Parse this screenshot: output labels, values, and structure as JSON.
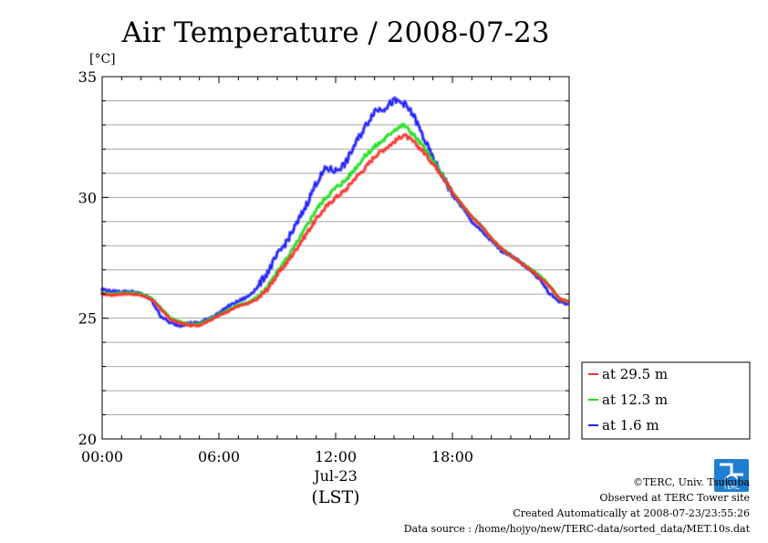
{
  "chart_data": {
    "type": "line",
    "title": "Air Temperature / 2008-07-23",
    "ylabel": "[°C]",
    "xlabel": "(LST)",
    "date_label": "Jul-23",
    "ylim": [
      20,
      35
    ],
    "xlim": [
      "00:00",
      "24:00"
    ],
    "y_ticks": [
      20,
      25,
      30,
      35
    ],
    "x_ticks": [
      "00:00",
      "06:00",
      "12:00",
      "18:00"
    ],
    "grid": true,
    "legend_position": "right-bottom",
    "x": [
      "00:00",
      "00:30",
      "01:00",
      "01:30",
      "02:00",
      "02:30",
      "03:00",
      "03:30",
      "04:00",
      "04:30",
      "05:00",
      "05:30",
      "06:00",
      "06:30",
      "07:00",
      "07:30",
      "08:00",
      "08:30",
      "09:00",
      "09:30",
      "10:00",
      "10:30",
      "11:00",
      "11:30",
      "12:00",
      "12:30",
      "13:00",
      "13:30",
      "14:00",
      "14:30",
      "15:00",
      "15:30",
      "16:00",
      "16:30",
      "17:00",
      "17:30",
      "18:00",
      "18:30",
      "19:00",
      "19:30",
      "20:00",
      "20:30",
      "21:00",
      "21:30",
      "22:00",
      "22:30",
      "23:00",
      "23:30",
      "23:55"
    ],
    "series": [
      {
        "name": "at 29.5 m",
        "color": "#ff3030",
        "values": [
          26.0,
          25.95,
          26.0,
          26.0,
          25.95,
          25.8,
          25.4,
          24.95,
          24.8,
          24.7,
          24.7,
          24.9,
          25.1,
          25.3,
          25.5,
          25.6,
          25.8,
          26.2,
          26.8,
          27.3,
          27.9,
          28.5,
          29.1,
          29.6,
          30.0,
          30.3,
          30.8,
          31.2,
          31.7,
          32.0,
          32.3,
          32.6,
          32.3,
          31.9,
          31.4,
          30.9,
          30.2,
          29.7,
          29.2,
          28.8,
          28.3,
          27.9,
          27.6,
          27.3,
          27.0,
          26.7,
          26.3,
          25.8,
          25.7
        ]
      },
      {
        "name": "at 12.3 m",
        "color": "#20e020",
        "values": [
          26.05,
          26.0,
          26.05,
          26.05,
          26.0,
          25.85,
          25.45,
          25.0,
          24.85,
          24.75,
          24.75,
          24.95,
          25.15,
          25.35,
          25.55,
          25.65,
          25.9,
          26.3,
          26.9,
          27.5,
          28.1,
          28.8,
          29.5,
          30.0,
          30.4,
          30.7,
          31.2,
          31.7,
          32.1,
          32.4,
          32.8,
          33.0,
          32.6,
          32.1,
          31.5,
          30.9,
          30.2,
          29.7,
          29.2,
          28.8,
          28.3,
          27.9,
          27.6,
          27.3,
          27.05,
          26.75,
          26.35,
          25.8,
          25.7
        ]
      },
      {
        "name": "at 1.6 m",
        "color": "#2020ff",
        "values": [
          26.2,
          26.1,
          26.1,
          26.1,
          26.0,
          25.8,
          25.1,
          24.8,
          24.7,
          24.8,
          24.8,
          25.0,
          25.2,
          25.5,
          25.7,
          25.9,
          26.3,
          26.9,
          27.6,
          28.2,
          28.9,
          29.7,
          30.6,
          31.2,
          31.1,
          31.4,
          32.2,
          32.9,
          33.6,
          33.7,
          34.0,
          33.9,
          33.4,
          32.5,
          31.6,
          30.9,
          30.1,
          29.6,
          29.0,
          28.6,
          28.2,
          27.8,
          27.6,
          27.3,
          27.0,
          26.6,
          26.0,
          25.7,
          25.6
        ]
      }
    ]
  },
  "footer": {
    "logo_text": "TERC",
    "copyright": "©TERC, Univ. Tsukuba",
    "site": "Observed at TERC Tower site",
    "created": "Created Automatically at 2008-07-23/23:55:26",
    "source": "Data source : /home/hojyo/new/TERC-data/sorted_data/MET.10s.dat"
  }
}
